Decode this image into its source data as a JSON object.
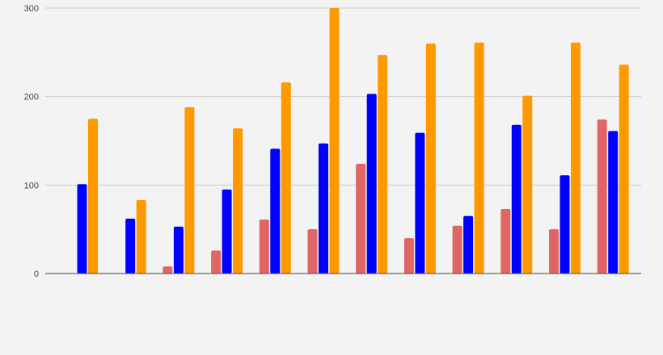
{
  "chart_data": {
    "type": "bar",
    "title": "",
    "xlabel": "",
    "ylabel": "",
    "ylim": [
      0,
      300
    ],
    "yticks": [
      0,
      100,
      200,
      300
    ],
    "grid": true,
    "legend": "none",
    "categories": [
      "",
      "",
      "",
      "",
      "",
      "",
      "",
      "",
      "",
      "",
      "",
      ""
    ],
    "series": [
      {
        "color": "#e06666",
        "values": [
          0,
          0,
          8,
          26,
          61,
          50,
          124,
          40,
          54,
          73,
          50,
          174
        ]
      },
      {
        "color": "#0000ff",
        "values": [
          101,
          62,
          53,
          95,
          141,
          147,
          203,
          159,
          65,
          168,
          111,
          161
        ]
      },
      {
        "color": "#ff9900",
        "values": [
          175,
          83,
          188,
          164,
          216,
          300,
          247,
          260,
          261,
          201,
          261,
          236
        ]
      }
    ]
  }
}
